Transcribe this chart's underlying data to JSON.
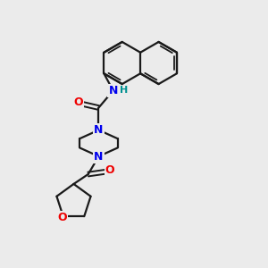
{
  "background_color": "#ebebeb",
  "bond_color": "#1a1a1a",
  "atom_colors": {
    "N": "#0000ee",
    "O": "#ee0000",
    "H": "#009090",
    "C": "#1a1a1a"
  },
  "figsize": [
    3.0,
    3.0
  ],
  "dpi": 100
}
